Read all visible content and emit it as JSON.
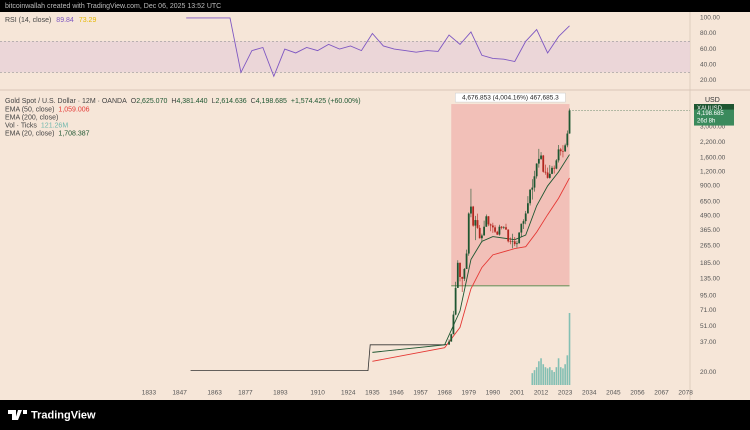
{
  "header": {
    "text": "bitcoinwallah created with TradingView.com, Dec 06, 2025 13:52 UTC"
  },
  "footer": {
    "logo": "TradingView"
  },
  "chart_data": [
    {
      "type": "line",
      "title": "RSI (14, close)",
      "ma_value": 73.29,
      "ma_color": "#e6b800",
      "x": [
        1850,
        1855,
        1860,
        1865,
        1870,
        1875,
        1880,
        1885,
        1890,
        1895,
        1900,
        1905,
        1910,
        1915,
        1920,
        1925,
        1930,
        1935,
        1940,
        1945,
        1950,
        1955,
        1960,
        1965,
        1970,
        1975,
        1980,
        1985,
        1990,
        1995,
        2000,
        2005,
        2010,
        2015,
        2020,
        2025
      ],
      "series": [
        {
          "color": "#7e57c2",
          "values": [
            100,
            100,
            100,
            100,
            100,
            30,
            58,
            62,
            25,
            60,
            55,
            62,
            58,
            66,
            60,
            64,
            58,
            80,
            64,
            60,
            58,
            56,
            58,
            57,
            78,
            66,
            82,
            52,
            48,
            47,
            44,
            70,
            85,
            55,
            76,
            89.84
          ]
        }
      ],
      "band": [
        30,
        70
      ],
      "xlim": [
        1765,
        2080
      ],
      "ylim": [
        10,
        105
      ],
      "yticks": [
        {
          "value": 100,
          "label": "100.00"
        },
        {
          "value": 80,
          "label": "80.00"
        },
        {
          "value": 60,
          "label": "60.00"
        },
        {
          "value": 40,
          "label": "40.00"
        },
        {
          "value": 20,
          "label": "20.00"
        }
      ]
    },
    {
      "type": "candlestick",
      "title": "Gold Spot / U.S. Dollar · 12M · OANDA",
      "log_scale": true,
      "x": [
        1970,
        1971,
        1972,
        1973,
        1974,
        1975,
        1976,
        1977,
        1978,
        1979,
        1980,
        1981,
        1982,
        1983,
        1984,
        1985,
        1986,
        1987,
        1988,
        1989,
        1990,
        1991,
        1992,
        1993,
        1994,
        1995,
        1996,
        1997,
        1998,
        1999,
        2000,
        2001,
        2002,
        2003,
        2004,
        2005,
        2006,
        2007,
        2008,
        2009,
        2010,
        2011,
        2012,
        2013,
        2014,
        2015,
        2016,
        2017,
        2018,
        2019,
        2020,
        2021,
        2022,
        2023,
        2024,
        2025
      ],
      "open": [
        35.2,
        37.4,
        43.5,
        64.9,
        112,
        187,
        140,
        135,
        165,
        226,
        512,
        590,
        400,
        448,
        382,
        309,
        327,
        391,
        484,
        410,
        401,
        386,
        353,
        333,
        391,
        383,
        387,
        369,
        290,
        288,
        290,
        274,
        279,
        347,
        416,
        438,
        513,
        632,
        834,
        870,
        1096,
        1421,
        1564,
        1675,
        1202,
        1184,
        1061,
        1152,
        1303,
        1282,
        1517,
        1898,
        1829,
        1824,
        2063,
        2625.07
      ],
      "high": [
        39.2,
        44,
        70,
        127,
        197,
        188,
        141,
        168,
        245,
        524,
        850,
        599,
        488,
        511,
        405,
        340,
        443,
        502,
        485,
        418,
        424,
        403,
        360,
        407,
        397,
        396,
        415,
        370,
        314,
        339,
        317,
        293,
        350,
        417,
        456,
        540,
        730,
        842,
        1033,
        1227,
        1431,
        1921,
        1796,
        1696,
        1392,
        1307,
        1375,
        1357,
        1366,
        1557,
        2075,
        1959,
        2070,
        2135,
        2790,
        4381.44
      ],
      "low": [
        34.9,
        37.3,
        43.3,
        64,
        112,
        128,
        103,
        129,
        165,
        216,
        474,
        391,
        297,
        374,
        307,
        284,
        326,
        390,
        396,
        356,
        345,
        344,
        330,
        326,
        370,
        372,
        367,
        283,
        273,
        252,
        263,
        255,
        277,
        319,
        373,
        411,
        513,
        603,
        681,
        802,
        1044,
        1308,
        1527,
        1180,
        1131,
        1046,
        1046,
        1146,
        1160,
        1266,
        1451,
        1676,
        1614,
        1804,
        1984,
        2614.636
      ],
      "close": [
        37.4,
        43.5,
        64.9,
        112,
        187,
        140,
        135,
        165,
        226,
        512,
        590,
        400,
        448,
        382,
        309,
        327,
        391,
        484,
        410,
        401,
        386,
        353,
        333,
        391,
        383,
        387,
        369,
        290,
        288,
        290,
        274,
        279,
        347,
        416,
        438,
        513,
        632,
        834,
        870,
        1096,
        1421,
        1564,
        1675,
        1202,
        1184,
        1061,
        1152,
        1303,
        1282,
        1517,
        1898,
        1829,
        1824,
        2063,
        2625,
        4198.685
      ],
      "up_color": "#1e5631",
      "down_color": "#b3261e",
      "ohlc_letters": [
        "O",
        "H",
        "L",
        "C"
      ],
      "last_labels": {
        "open": "2,625.070",
        "high": "4,381.440",
        "low": "2,614.636",
        "close": "4,198.685"
      },
      "change": "+1,574.425 (+60.00%)",
      "history": {
        "x": [
          1852,
          1933,
          1934,
          1967,
          1969
        ],
        "values": [
          20.67,
          20.67,
          35,
          35,
          35.2
        ],
        "color": "#333333"
      },
      "series": [
        {
          "name": "EMA (50, close)",
          "value_label": "1,059.006",
          "color": "#e53935",
          "x": [
            1935,
            1968,
            1975,
            1980,
            1985,
            1990,
            2000,
            2005,
            2010,
            2015,
            2020,
            2025
          ],
          "values": [
            25,
            33,
            50,
            110,
            170,
            220,
            250,
            260,
            350,
            500,
            700,
            1059.006
          ]
        },
        {
          "name": "EMA (200, close)",
          "color": "#555555"
        },
        {
          "name": "Vol · Ticks",
          "value_label": "121.26M",
          "type": "bar",
          "color": "#6fb7ad",
          "x": [
            2008,
            2009,
            2010,
            2011,
            2012,
            2013,
            2014,
            2015,
            2016,
            2017,
            2018,
            2019,
            2020,
            2021,
            2022,
            2023,
            2024,
            2025
          ],
          "values": [
            20,
            25,
            30,
            40,
            45,
            35,
            30,
            28,
            30,
            25,
            22,
            30,
            45,
            30,
            28,
            35,
            50,
            121.26
          ]
        },
        {
          "name": "EMA (20, close)",
          "value_label": "1,708.387",
          "color": "#1e5631",
          "x": [
            1935,
            1968,
            1975,
            1980,
            1985,
            1990,
            2000,
            2005,
            2010,
            2015,
            2020,
            2025
          ],
          "values": [
            30,
            35,
            70,
            200,
            290,
            320,
            300,
            330,
            600,
            900,
            1200,
            1708.387
          ]
        }
      ],
      "measure": {
        "label": "4,676.853 (4,004.16%) 467,685.3",
        "x": [
          1971,
          2025
        ],
        "y": [
          116.8,
          4793.6
        ],
        "color": "#f0b3ad"
      },
      "currency": "USD",
      "symbol": "XAUUSD",
      "countdown": "26d 8h",
      "xlim": [
        1765,
        2080
      ],
      "xticks": [
        1833,
        1847,
        1863,
        1877,
        1893,
        1910,
        1924,
        1935,
        1946,
        1957,
        1968,
        1979,
        1990,
        2001,
        2012,
        2023,
        2034,
        2045,
        2056,
        2067,
        2078
      ],
      "ylim": [
        15.4,
        5770
      ],
      "yticks": [
        {
          "value": 3000,
          "label": "3,000.00"
        },
        {
          "value": 2200,
          "label": "2,200.00"
        },
        {
          "value": 1600,
          "label": "1,600.00"
        },
        {
          "value": 1200,
          "label": "1,200.00"
        },
        {
          "value": 900,
          "label": "900.00"
        },
        {
          "value": 650,
          "label": "650.00"
        },
        {
          "value": 490,
          "label": "490.00"
        },
        {
          "value": 365,
          "label": "365.00"
        },
        {
          "value": 265,
          "label": "265.00"
        },
        {
          "value": 185,
          "label": "185.00"
        },
        {
          "value": 135,
          "label": "135.00"
        },
        {
          "value": 95,
          "label": "95.00"
        },
        {
          "value": 71,
          "label": "71.00"
        },
        {
          "value": 51,
          "label": "51.00"
        },
        {
          "value": 37,
          "label": "37.00"
        },
        {
          "value": 20,
          "label": "20.00"
        }
      ]
    }
  ]
}
